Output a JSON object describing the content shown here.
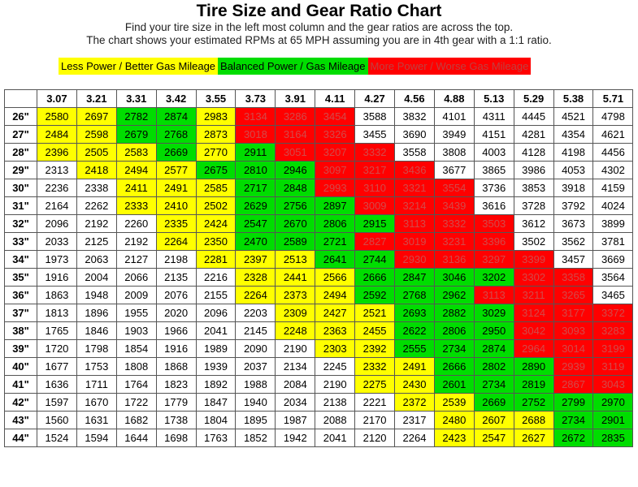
{
  "title": "Tire Size and Gear Ratio Chart",
  "subtitle_line1": "Find your tire size in the left most column and the gear ratios are across the top.",
  "subtitle_line2": "The chart shows your estimated RPMs at 65 MPH assuming you are in 4th gear with a 1:1 ratio.",
  "legend": [
    {
      "label": "Less Power / Better Gas Mileage",
      "color": "#ffff00"
    },
    {
      "label": "Balanced Power / Gas Mileage",
      "color": "#00dd00"
    },
    {
      "label": "More Power / Worse Gas Mileage",
      "color": "#ff0000"
    }
  ],
  "chart_data": {
    "type": "table",
    "title": "Tire Size and Gear Ratio Chart",
    "column_headers": [
      "3.07",
      "3.21",
      "3.31",
      "3.42",
      "3.55",
      "3.73",
      "3.91",
      "4.11",
      "4.27",
      "4.56",
      "4.88",
      "5.13",
      "5.29",
      "5.38",
      "5.71"
    ],
    "row_headers": [
      "26\"",
      "27\"",
      "28\"",
      "29\"",
      "30\"",
      "31\"",
      "32\"",
      "33\"",
      "34\"",
      "35\"",
      "36\"",
      "37\"",
      "38\"",
      "39\"",
      "40\"",
      "41\"",
      "42\"",
      "43\"",
      "44\""
    ],
    "values": [
      [
        2580,
        2697,
        2782,
        2874,
        2983,
        3134,
        3286,
        3454,
        3588,
        3832,
        4101,
        4311,
        4445,
        4521,
        4798
      ],
      [
        2484,
        2598,
        2679,
        2768,
        2873,
        3018,
        3164,
        3326,
        3455,
        3690,
        3949,
        4151,
        4281,
        4354,
        4621
      ],
      [
        2396,
        2505,
        2583,
        2669,
        2770,
        2911,
        3051,
        3207,
        3332,
        3558,
        3808,
        4003,
        4128,
        4198,
        4456
      ],
      [
        2313,
        2418,
        2494,
        2577,
        2675,
        2810,
        2946,
        3097,
        3217,
        3436,
        3677,
        3865,
        3986,
        4053,
        4302
      ],
      [
        2236,
        2338,
        2411,
        2491,
        2585,
        2717,
        2848,
        2993,
        3110,
        3321,
        3554,
        3736,
        3853,
        3918,
        4159
      ],
      [
        2164,
        2262,
        2333,
        2410,
        2502,
        2629,
        2756,
        2897,
        3009,
        3214,
        3439,
        3616,
        3728,
        3792,
        4024
      ],
      [
        2096,
        2192,
        2260,
        2335,
        2424,
        2547,
        2670,
        2806,
        2915,
        3113,
        3332,
        3503,
        3612,
        3673,
        3899
      ],
      [
        2033,
        2125,
        2192,
        2264,
        2350,
        2470,
        2589,
        2721,
        2827,
        3019,
        3231,
        3396,
        3502,
        3562,
        3781
      ],
      [
        1973,
        2063,
        2127,
        2198,
        2281,
        2397,
        2513,
        2641,
        2744,
        2930,
        3136,
        3297,
        3399,
        3457,
        3669
      ],
      [
        1916,
        2004,
        2066,
        2135,
        2216,
        2328,
        2441,
        2566,
        2666,
        2847,
        3046,
        3202,
        3302,
        3358,
        3564
      ],
      [
        1863,
        1948,
        2009,
        2076,
        2155,
        2264,
        2373,
        2494,
        2592,
        2768,
        2962,
        3113,
        3211,
        3265,
        3465
      ],
      [
        1813,
        1896,
        1955,
        2020,
        2096,
        2203,
        2309,
        2427,
        2521,
        2693,
        2882,
        3029,
        3124,
        3177,
        3372
      ],
      [
        1765,
        1846,
        1903,
        1966,
        2041,
        2145,
        2248,
        2363,
        2455,
        2622,
        2806,
        2950,
        3042,
        3093,
        3283
      ],
      [
        1720,
        1798,
        1854,
        1916,
        1989,
        2090,
        2190,
        2303,
        2392,
        2555,
        2734,
        2874,
        2964,
        3014,
        3199
      ],
      [
        1677,
        1753,
        1808,
        1868,
        1939,
        2037,
        2134,
        2245,
        2332,
        2491,
        2666,
        2802,
        2890,
        2939,
        3119
      ],
      [
        1636,
        1711,
        1764,
        1823,
        1892,
        1988,
        2084,
        2190,
        2275,
        2430,
        2601,
        2734,
        2819,
        2867,
        3043
      ],
      [
        1597,
        1670,
        1722,
        1779,
        1847,
        1940,
        2034,
        2138,
        2221,
        2372,
        2539,
        2669,
        2752,
        2799,
        2970
      ],
      [
        1560,
        1631,
        1682,
        1738,
        1804,
        1895,
        1987,
        2088,
        2170,
        2317,
        2480,
        2607,
        2688,
        2734,
        2901
      ],
      [
        1524,
        1594,
        1644,
        1698,
        1763,
        1852,
        1942,
        2041,
        2120,
        2264,
        2423,
        2547,
        2627,
        2672,
        2835
      ]
    ],
    "cell_colors": [
      "yyggyrrrwwwwwww",
      "yyggyrrrwwwwwww",
      "yyygygrrrwwwwww",
      "wyyygggrrrwwwww",
      "wwyyyggrrrrwwww",
      "wwyyygggrrrwwww",
      "wwwyyggggrrrwww",
      "wwwyygggrrrrwww",
      "wwwwyyyggrrrrww",
      "wwwwwyyyggggrrw",
      "wwwwwyyygggrrrw",
      "wwwwwwyyygggrrr",
      "wwwwwwyyygggrrr",
      "wwwwwwwyygggrrr",
      "wwwwwwwwyygggrr",
      "wwwwwwwwyygggrr",
      "wwwwwwwwwyygggg",
      "wwwwwwwwwwyyygg",
      "wwwwwwwwwwyyygg"
    ]
  }
}
